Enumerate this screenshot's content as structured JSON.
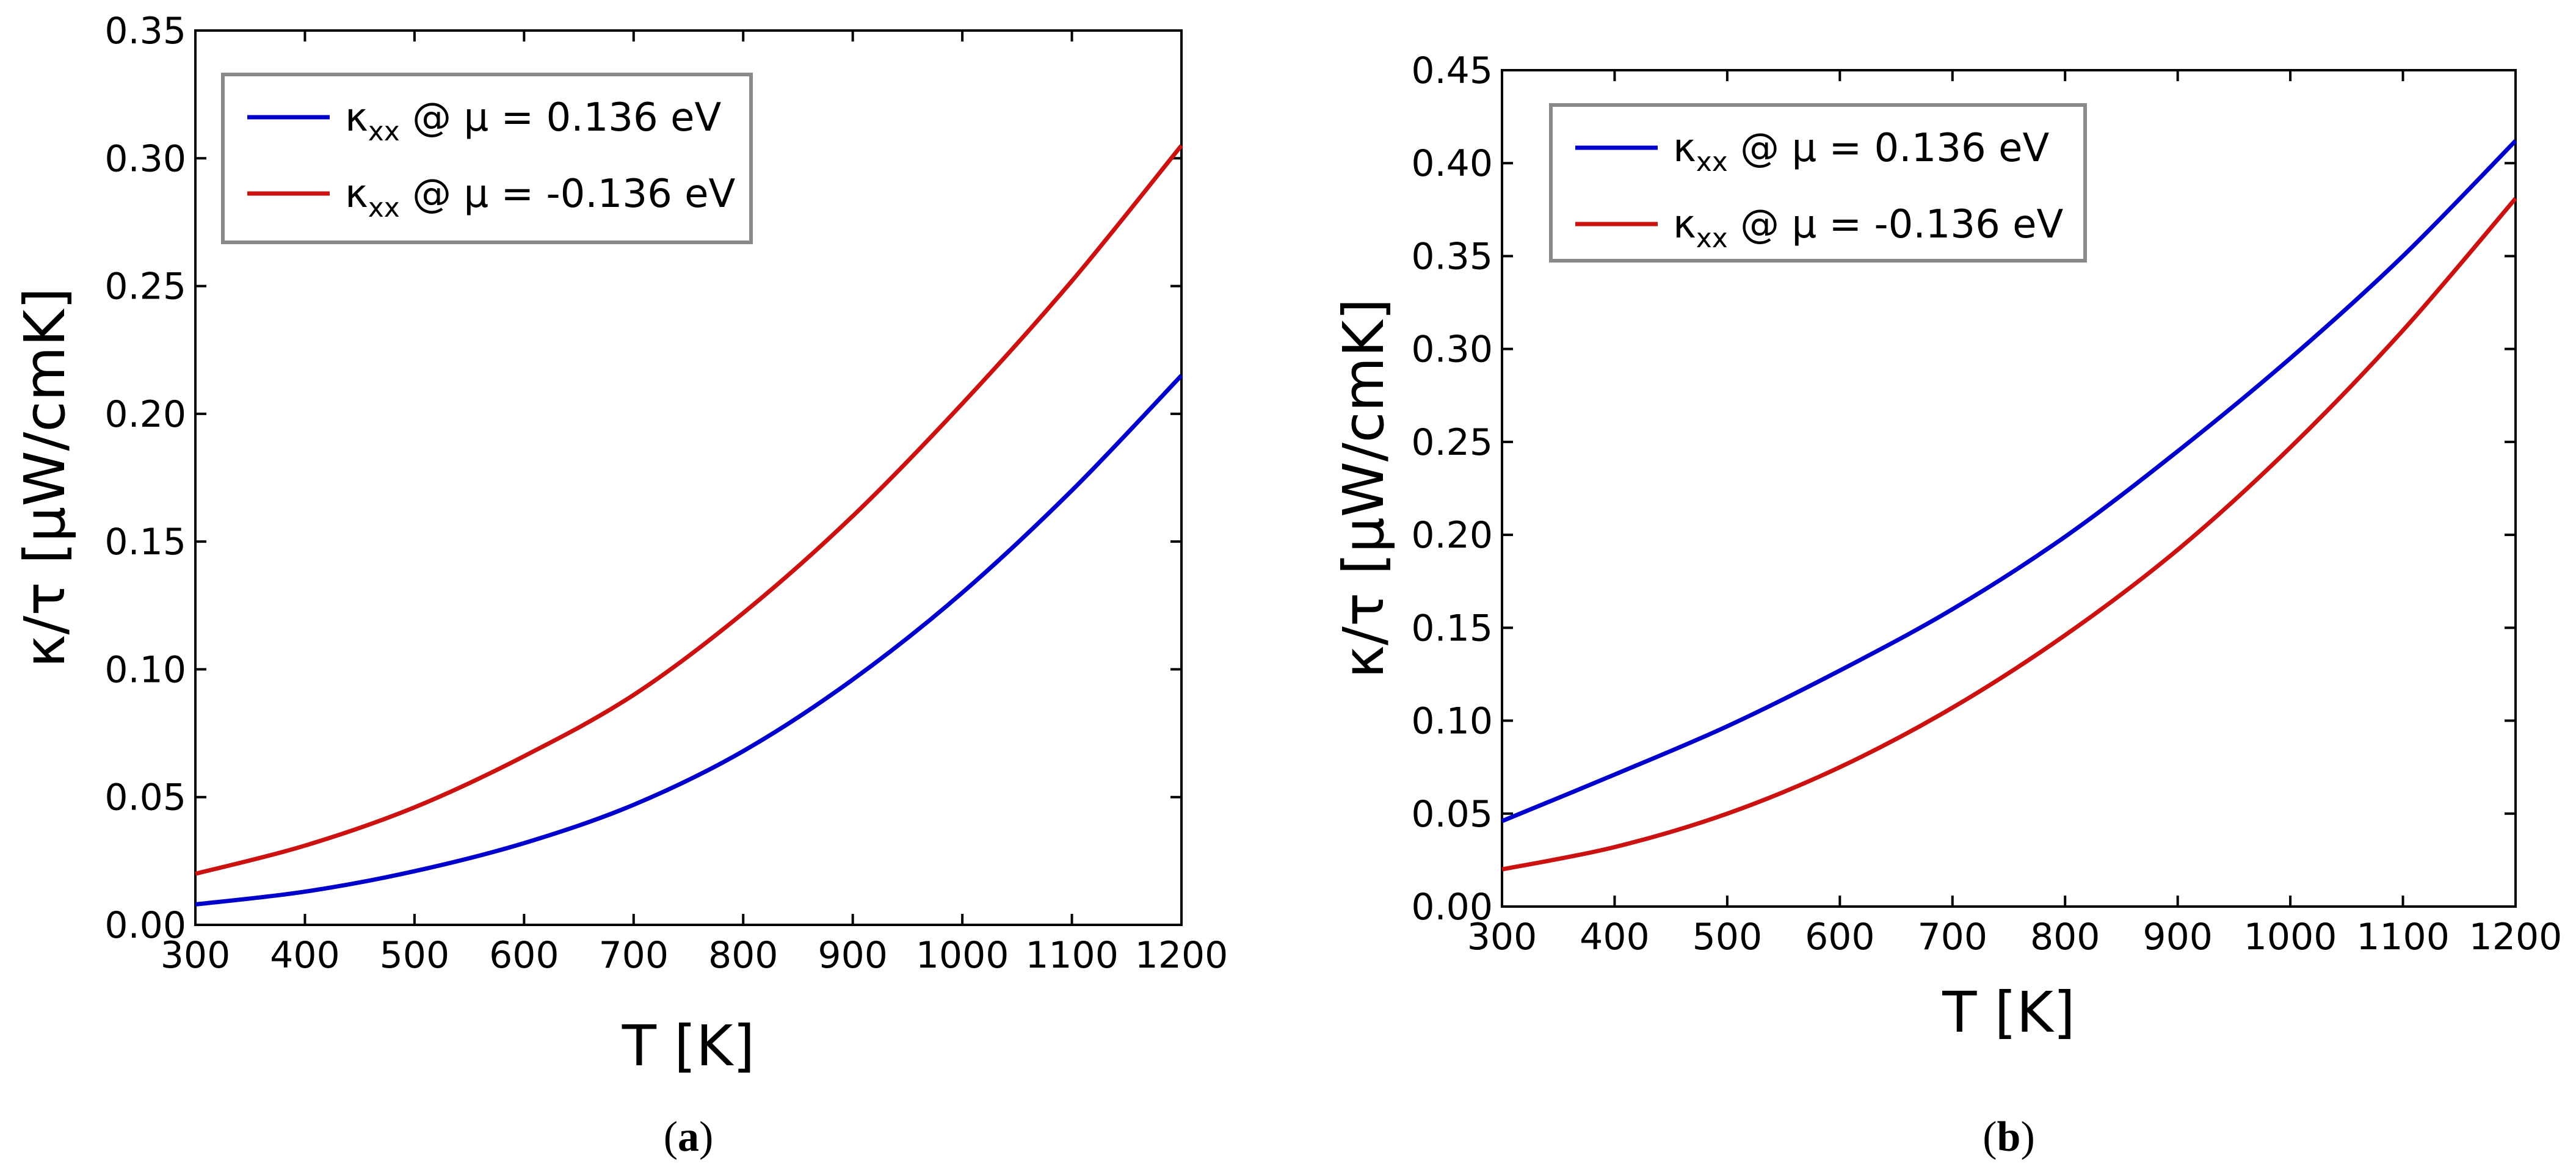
{
  "chart_data": [
    {
      "type": "line",
      "panel": "a",
      "caption_letter": "a",
      "xlabel": "T [K]",
      "ylabel": "κ/τ [μW/cmK]",
      "xlim": [
        300,
        1200
      ],
      "ylim": [
        0,
        0.35
      ],
      "xticks": [
        300,
        400,
        500,
        600,
        700,
        800,
        900,
        1000,
        1100,
        1200
      ],
      "xtick_labels": [
        "300",
        "400",
        "500",
        "600",
        "700",
        "800",
        "900",
        "1000",
        "1100",
        "1200"
      ],
      "yticks": [
        0,
        0.05,
        0.1,
        0.15,
        0.2,
        0.25,
        0.3,
        0.35
      ],
      "ytick_labels": [
        "0.00",
        "0.05",
        "0.10",
        "0.15",
        "0.20",
        "0.25",
        "0.30",
        "0.35"
      ],
      "legend_position": "top-left",
      "x": [
        300,
        400,
        500,
        600,
        700,
        800,
        900,
        1000,
        1100,
        1200
      ],
      "series": [
        {
          "name": "κxx @ μ = 0.136 eV",
          "legend_main": "κ",
          "legend_sub": "xx",
          "legend_rest": " @ μ = 0.136 eV",
          "color": "#0000cc",
          "values": [
            0.008,
            0.013,
            0.021,
            0.032,
            0.047,
            0.068,
            0.096,
            0.13,
            0.17,
            0.215
          ]
        },
        {
          "name": "κxx @ μ = -0.136 eV",
          "legend_main": "κ",
          "legend_sub": "xx",
          "legend_rest": " @ μ = -0.136 eV",
          "color": "#cc1111",
          "values": [
            0.02,
            0.031,
            0.046,
            0.066,
            0.09,
            0.122,
            0.16,
            0.204,
            0.252,
            0.305
          ]
        }
      ]
    },
    {
      "type": "line",
      "panel": "b",
      "caption_letter": "b",
      "xlabel": "T [K]",
      "ylabel": "κ/τ [μW/cmK]",
      "xlim": [
        300,
        1200
      ],
      "ylim": [
        0,
        0.45
      ],
      "xticks": [
        300,
        400,
        500,
        600,
        700,
        800,
        900,
        1000,
        1100,
        1200
      ],
      "xtick_labels": [
        "300",
        "400",
        "500",
        "600",
        "700",
        "800",
        "900",
        "1000",
        "1100",
        "1200"
      ],
      "yticks": [
        0,
        0.05,
        0.1,
        0.15,
        0.2,
        0.25,
        0.3,
        0.35,
        0.4,
        0.45
      ],
      "ytick_labels": [
        "0.00",
        "0.05",
        "0.10",
        "0.15",
        "0.20",
        "0.25",
        "0.30",
        "0.35",
        "0.40",
        "0.45"
      ],
      "legend_position": "top-left",
      "x": [
        300,
        400,
        500,
        600,
        700,
        800,
        900,
        1000,
        1100,
        1200
      ],
      "series": [
        {
          "name": "κxx @ μ = 0.136 eV",
          "legend_main": "κ",
          "legend_sub": "xx",
          "legend_rest": " @ μ = 0.136 eV",
          "color": "#0000cc",
          "values": [
            0.046,
            0.071,
            0.097,
            0.127,
            0.16,
            0.199,
            0.245,
            0.295,
            0.35,
            0.412
          ]
        },
        {
          "name": "κxx @ μ = -0.136 eV",
          "legend_main": "κ",
          "legend_sub": "xx",
          "legend_rest": " @ μ = -0.136 eV",
          "color": "#cc1111",
          "values": [
            0.02,
            0.032,
            0.05,
            0.075,
            0.107,
            0.146,
            0.192,
            0.247,
            0.31,
            0.381
          ]
        }
      ]
    }
  ]
}
